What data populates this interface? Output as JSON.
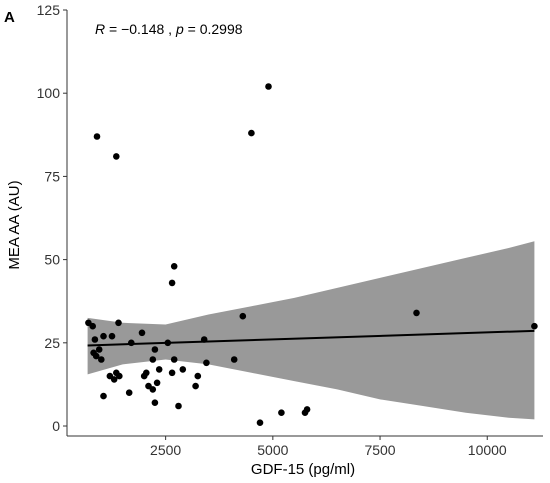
{
  "chart_data": {
    "type": "scatter",
    "panel_label": "A",
    "xlabel": "GDF-15 (pg/ml)",
    "ylabel": "MEA AA (AU)",
    "xlim": [
      200,
      11300
    ],
    "ylim": [
      -3,
      125
    ],
    "x_ticks": [
      2500,
      5000,
      7500,
      10000
    ],
    "y_ticks": [
      0,
      25,
      50,
      75,
      100,
      125
    ],
    "grid": false,
    "annotation": {
      "r_symbol": "R",
      "r_text": " = −0.148 , ",
      "p_symbol": "p",
      "p_text": " = 0.2998"
    },
    "colors": {
      "points": "#000000",
      "line": "#000000",
      "band": "#999999",
      "axis": "#333333"
    },
    "points": [
      {
        "x": 900,
        "y": 87
      },
      {
        "x": 1350,
        "y": 81
      },
      {
        "x": 4900,
        "y": 102
      },
      {
        "x": 4500,
        "y": 88
      },
      {
        "x": 2700,
        "y": 48
      },
      {
        "x": 2650,
        "y": 43
      },
      {
        "x": 700,
        "y": 31
      },
      {
        "x": 800,
        "y": 30
      },
      {
        "x": 1400,
        "y": 31
      },
      {
        "x": 850,
        "y": 26
      },
      {
        "x": 1050,
        "y": 27
      },
      {
        "x": 1250,
        "y": 27
      },
      {
        "x": 820,
        "y": 22
      },
      {
        "x": 880,
        "y": 21
      },
      {
        "x": 950,
        "y": 23
      },
      {
        "x": 1000,
        "y": 20
      },
      {
        "x": 1200,
        "y": 15
      },
      {
        "x": 1300,
        "y": 14
      },
      {
        "x": 1350,
        "y": 16
      },
      {
        "x": 1420,
        "y": 15
      },
      {
        "x": 1050,
        "y": 9
      },
      {
        "x": 1700,
        "y": 25
      },
      {
        "x": 1950,
        "y": 28
      },
      {
        "x": 1650,
        "y": 10
      },
      {
        "x": 2000,
        "y": 15
      },
      {
        "x": 2050,
        "y": 16
      },
      {
        "x": 2200,
        "y": 20
      },
      {
        "x": 2250,
        "y": 23
      },
      {
        "x": 2100,
        "y": 12
      },
      {
        "x": 2200,
        "y": 11
      },
      {
        "x": 2300,
        "y": 13
      },
      {
        "x": 2350,
        "y": 17
      },
      {
        "x": 2250,
        "y": 7
      },
      {
        "x": 2550,
        "y": 25
      },
      {
        "x": 2650,
        "y": 16
      },
      {
        "x": 2800,
        "y": 6
      },
      {
        "x": 2700,
        "y": 20
      },
      {
        "x": 2900,
        "y": 17
      },
      {
        "x": 3200,
        "y": 12
      },
      {
        "x": 3250,
        "y": 15
      },
      {
        "x": 3400,
        "y": 26
      },
      {
        "x": 3450,
        "y": 19
      },
      {
        "x": 4100,
        "y": 20
      },
      {
        "x": 4300,
        "y": 33
      },
      {
        "x": 4700,
        "y": 1
      },
      {
        "x": 5200,
        "y": 4
      },
      {
        "x": 5750,
        "y": 4
      },
      {
        "x": 5800,
        "y": 5
      },
      {
        "x": 8350,
        "y": 34
      },
      {
        "x": 11100,
        "y": 30
      }
    ],
    "fit_line": {
      "x": [
        680,
        11100
      ],
      "y": [
        24.2,
        28.6
      ]
    },
    "confidence_band": {
      "x": [
        680,
        1500,
        2500,
        3500,
        4500,
        5500,
        6500,
        7500,
        8500,
        9500,
        10500,
        11100
      ],
      "upper": [
        32.5,
        31.0,
        30.5,
        33.5,
        36.0,
        38.5,
        41.5,
        44.5,
        47.5,
        50.5,
        53.5,
        55.5
      ],
      "lower": [
        15.5,
        18.5,
        20.0,
        18.5,
        16.0,
        13.5,
        11.0,
        8.0,
        6.0,
        4.0,
        2.5,
        2.0
      ]
    }
  }
}
